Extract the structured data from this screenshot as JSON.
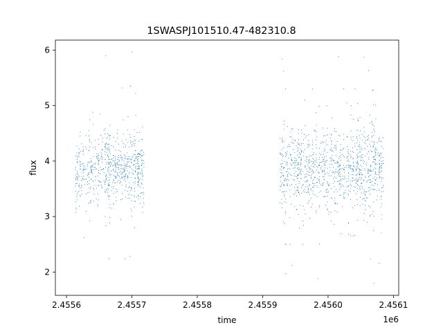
{
  "chart_data": {
    "type": "scatter",
    "title": "1SWASPJ101510.47-482310.8",
    "xlabel": "time",
    "ylabel": "flux",
    "x_offset_label": "1e6",
    "xlim": [
      2455583,
      2456108
    ],
    "ylim": [
      1.58,
      6.18
    ],
    "x_ticks": [
      {
        "value": 2455600,
        "label": "2.4556"
      },
      {
        "value": 2455700,
        "label": "2.4557"
      },
      {
        "value": 2455800,
        "label": "2.4558"
      },
      {
        "value": 2455900,
        "label": "2.4559"
      },
      {
        "value": 2456000,
        "label": "2.4560"
      },
      {
        "value": 2456100,
        "label": "2.4561"
      }
    ],
    "y_ticks": [
      {
        "value": 2,
        "label": "2"
      },
      {
        "value": 3,
        "label": "3"
      },
      {
        "value": 4,
        "label": "4"
      },
      {
        "value": 5,
        "label": "5"
      },
      {
        "value": 6,
        "label": "6"
      }
    ],
    "grid": false,
    "legend": "none",
    "marker_color": "#1f77b4",
    "observing_seasons": [
      {
        "start": 2455614,
        "end": 2455718,
        "median_flux": 3.85,
        "spread": 0.3
      },
      {
        "start": 2455927,
        "end": 2456084,
        "median_flux": 3.85,
        "spread": 0.35
      }
    ],
    "outliers": [
      {
        "x": 2455700,
        "y": 5.97
      },
      {
        "x": 2455660,
        "y": 5.9
      },
      {
        "x": 2455685,
        "y": 5.32
      },
      {
        "x": 2455698,
        "y": 5.35
      },
      {
        "x": 2455627,
        "y": 2.62
      },
      {
        "x": 2455665,
        "y": 2.24
      },
      {
        "x": 2455690,
        "y": 2.24
      },
      {
        "x": 2455697,
        "y": 2.28
      },
      {
        "x": 2455930,
        "y": 5.84
      },
      {
        "x": 2455932,
        "y": 5.62
      },
      {
        "x": 2455935,
        "y": 5.3
      },
      {
        "x": 2455935,
        "y": 1.97
      },
      {
        "x": 2455945,
        "y": 2.12
      },
      {
        "x": 2455985,
        "y": 1.88
      },
      {
        "x": 2455998,
        "y": 5.0
      },
      {
        "x": 2456016,
        "y": 5.88
      },
      {
        "x": 2456055,
        "y": 5.87
      },
      {
        "x": 2456062,
        "y": 5.63
      },
      {
        "x": 2456068,
        "y": 5.28
      },
      {
        "x": 2456065,
        "y": 2.23
      },
      {
        "x": 2456070,
        "y": 1.8
      },
      {
        "x": 2456078,
        "y": 2.16
      }
    ]
  }
}
